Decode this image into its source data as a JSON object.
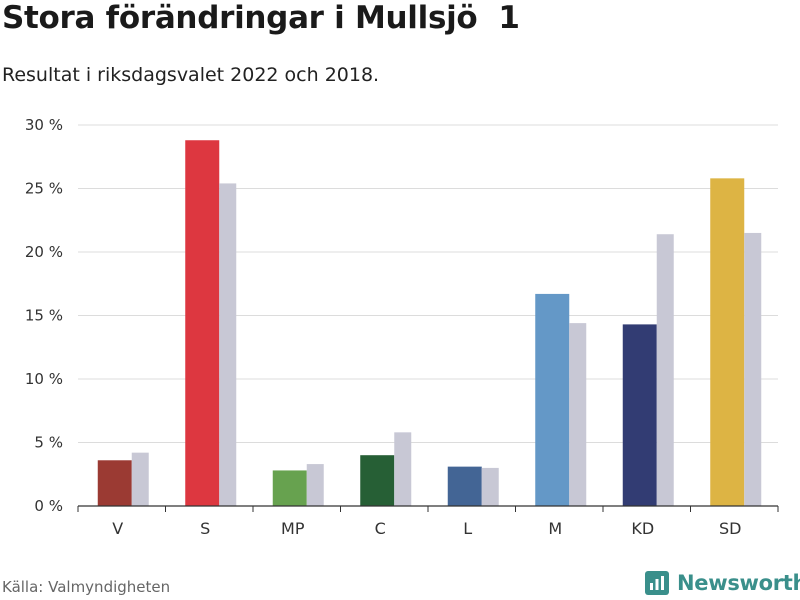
{
  "title": "Stora förändringar i Mullsjö  1",
  "subtitle": "Resultat i riksdagsvalet 2022 och 2018.",
  "source": "Källa: Valmyndigheten",
  "brand": {
    "name": "Newsworthy",
    "icon": "newsworthy-logo-icon",
    "color": "#3a8f8b"
  },
  "chart_data": {
    "type": "bar",
    "categories": [
      "V",
      "S",
      "MP",
      "C",
      "L",
      "M",
      "KD",
      "SD"
    ],
    "series": [
      {
        "values": [
          3.6,
          28.8,
          2.8,
          4.0,
          3.1,
          16.7,
          14.3,
          25.8
        ],
        "colors": [
          "#9b3a33",
          "#dd3740",
          "#67a24f",
          "#265f35",
          "#436595",
          "#6498c7",
          "#323c73",
          "#ddb444"
        ]
      },
      {
        "values": [
          4.2,
          25.4,
          3.3,
          5.8,
          3.0,
          14.4,
          21.4,
          21.5
        ],
        "color": "#c8c8d5"
      }
    ],
    "ylim": [
      0,
      30
    ],
    "yticks": [
      0,
      5,
      10,
      15,
      20,
      25,
      30
    ],
    "ytick_labels": [
      "0 %",
      "5 %",
      "10 %",
      "15 %",
      "20 %",
      "25 %",
      "30 %"
    ],
    "grid": true,
    "xlabel": "",
    "ylabel": ""
  }
}
